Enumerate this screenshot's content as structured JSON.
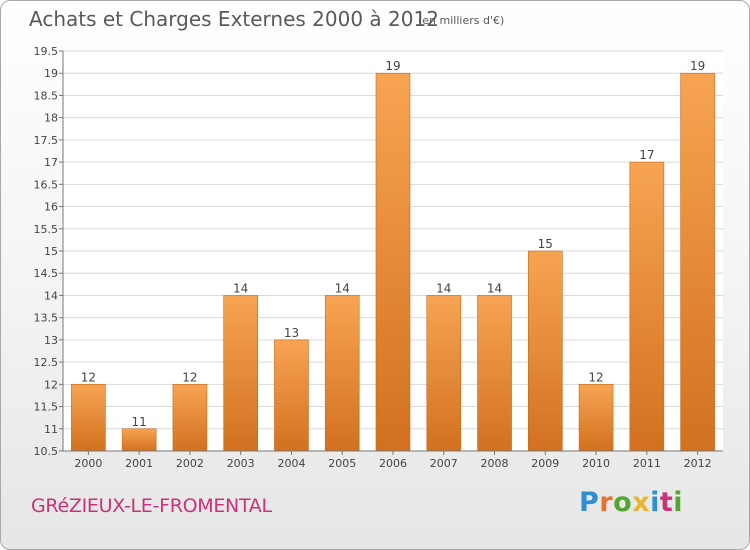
{
  "header": {
    "title": "Achats et Charges Externes 2000 à 2012",
    "unit": "(en milliers d'€)"
  },
  "footer": {
    "commune": "GRéZIEUX-LE-FROMENTAL",
    "logo": {
      "text": "Proxiti",
      "letters": [
        {
          "char": "P",
          "color": "#2e8fd3"
        },
        {
          "char": "r",
          "color": "#e8732c"
        },
        {
          "char": "o",
          "color": "#55a630"
        },
        {
          "char": "x",
          "color": "#e8b52c"
        },
        {
          "char": "i",
          "color": "#2e8fd3"
        },
        {
          "char": "t",
          "color": "#c8327a"
        },
        {
          "char": "i",
          "color": "#55a630"
        }
      ]
    }
  },
  "colors": {
    "bar_top": "#f7a452",
    "bar_bottom": "#d2711f",
    "axis_text": "#444444",
    "title_text": "#595959",
    "accent": "#c8327a"
  },
  "chart_data": {
    "type": "bar",
    "categories": [
      "2000",
      "2001",
      "2002",
      "2003",
      "2004",
      "2005",
      "2006",
      "2007",
      "2008",
      "2009",
      "2010",
      "2011",
      "2012"
    ],
    "values": [
      12,
      11,
      12,
      14,
      13,
      14,
      19,
      14,
      14,
      15,
      12,
      17,
      19
    ],
    "data_labels": [
      "12",
      "11",
      "12",
      "14",
      "13",
      "14",
      "19",
      "14",
      "14",
      "15",
      "12",
      "17",
      "19"
    ],
    "title": "Achats et Charges Externes 2000 à 2012",
    "subtitle": "(en milliers d'€)",
    "xlabel": "",
    "ylabel": "",
    "ylim": [
      10.5,
      19.5
    ],
    "yticks": [
      10.5,
      11,
      11.5,
      12,
      12.5,
      13,
      13.5,
      14,
      14.5,
      15,
      15.5,
      16,
      16.5,
      17,
      17.5,
      18,
      18.5,
      19,
      19.5
    ],
    "ytick_labels": [
      "10.5",
      "11",
      "11.5",
      "12",
      "12.5",
      "13",
      "13.5",
      "14",
      "14.5",
      "15",
      "15.5",
      "16",
      "16.5",
      "17",
      "17.5",
      "18",
      "18.5",
      "19",
      "19.5"
    ],
    "grid": true,
    "legend": "none"
  }
}
